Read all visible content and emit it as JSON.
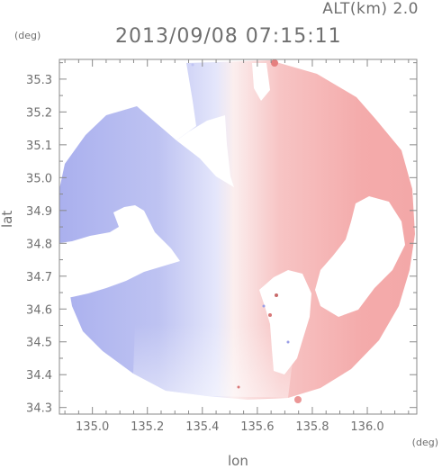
{
  "header": {
    "altitude": "ALT(km) 2.0",
    "timestamp": "2013/09/08 07:15:11"
  },
  "axes": {
    "y_unit": "(deg)",
    "x_unit": "(deg)",
    "xlabel": "lon",
    "ylabel": "lat",
    "x_range": [
      134.88,
      136.18
    ],
    "y_range": [
      34.28,
      35.36
    ],
    "x_ticks": [
      "135.0",
      "135.2",
      "135.4",
      "135.6",
      "135.8",
      "136.0"
    ],
    "y_ticks": [
      "34.3",
      "34.4",
      "34.5",
      "34.6",
      "34.7",
      "34.8",
      "34.9",
      "35.0",
      "35.1",
      "35.2",
      "35.3"
    ]
  },
  "colors": {
    "approaching": "#b9bff2",
    "receding": "#f7b6b6",
    "frame": "#8a8a8a"
  }
}
